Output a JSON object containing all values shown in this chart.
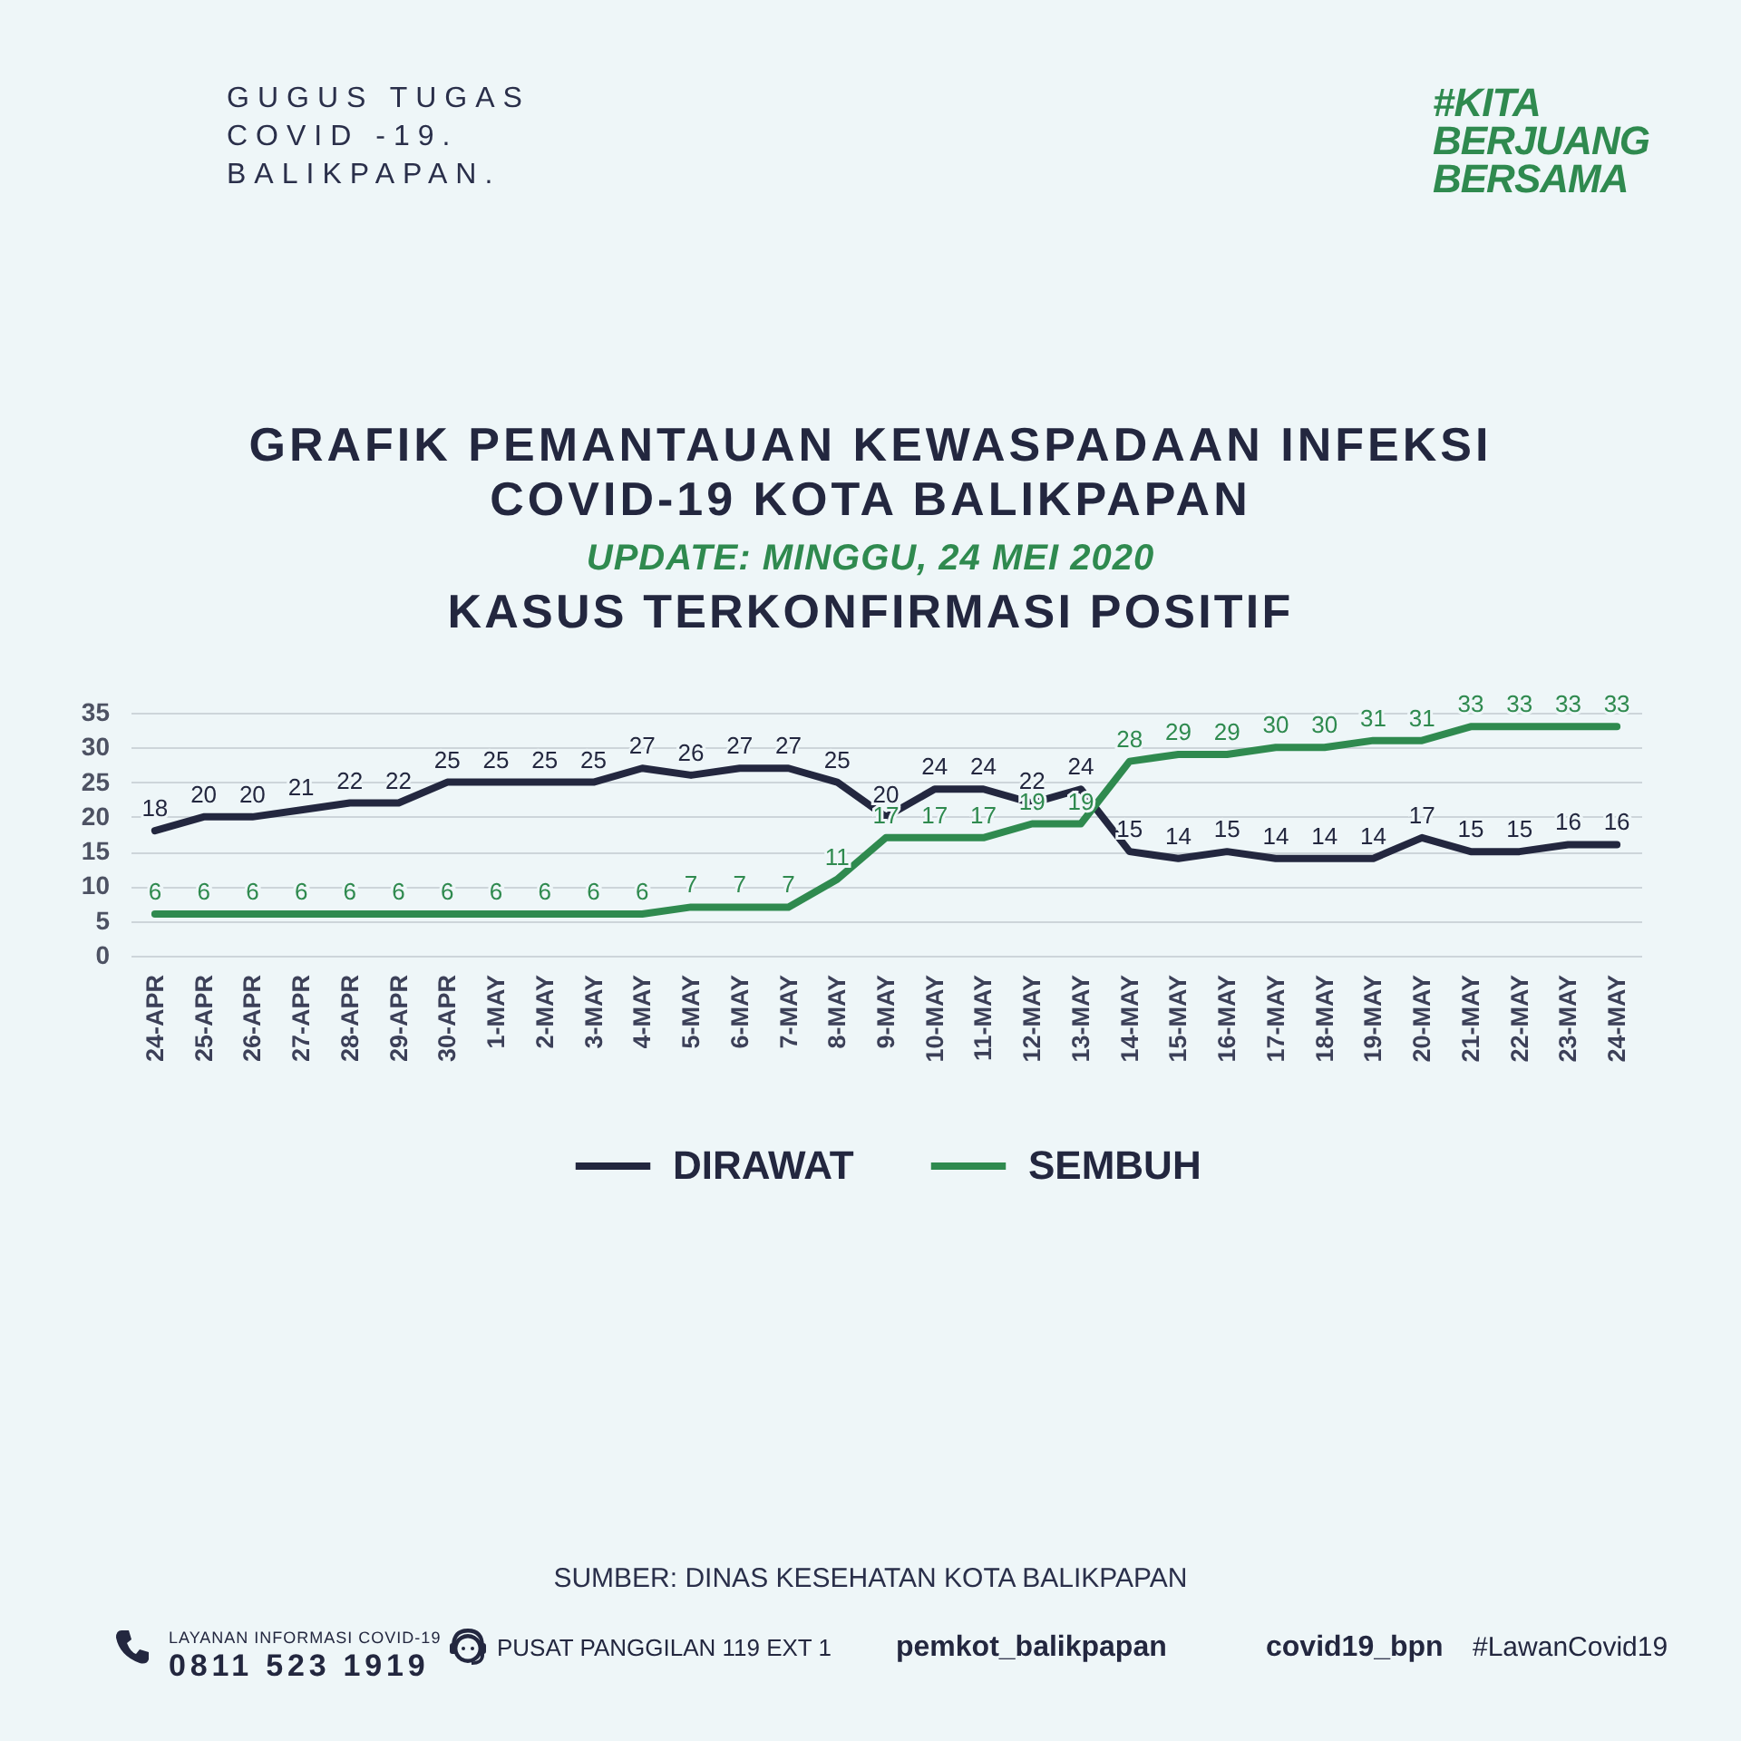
{
  "chart_data": {
    "type": "line",
    "title": "GRAFIK PEMANTAUAN KEWASPADAAN INFEKSI COVID-19 KOTA BALIKPAPAN",
    "subtitle": "KASUS TERKONFIRMASI POSITIF",
    "categories": [
      "24-APR",
      "25-APR",
      "26-APR",
      "27-APR",
      "28-APR",
      "29-APR",
      "30-APR",
      "1-MAY",
      "2-MAY",
      "3-MAY",
      "4-MAY",
      "5-MAY",
      "6-MAY",
      "7-MAY",
      "8-MAY",
      "9-MAY",
      "10-MAY",
      "11-MAY",
      "12-MAY",
      "13-MAY",
      "14-MAY",
      "15-MAY",
      "16-MAY",
      "17-MAY",
      "18-MAY",
      "19-MAY",
      "20-MAY",
      "21-MAY",
      "22-MAY",
      "23-MAY",
      "24-MAY"
    ],
    "series": [
      {
        "name": "DIRAWAT",
        "color": "#23273f",
        "values": [
          18,
          20,
          20,
          21,
          22,
          22,
          25,
          25,
          25,
          25,
          27,
          26,
          27,
          27,
          25,
          20,
          24,
          24,
          22,
          24,
          15,
          14,
          15,
          14,
          14,
          14,
          17,
          15,
          15,
          16,
          16
        ]
      },
      {
        "name": "SEMBUH",
        "color": "#2f8a4f",
        "values": [
          6,
          6,
          6,
          6,
          6,
          6,
          6,
          6,
          6,
          6,
          6,
          7,
          7,
          7,
          11,
          17,
          17,
          17,
          19,
          19,
          28,
          29,
          29,
          30,
          30,
          31,
          31,
          33,
          33,
          33,
          33
        ]
      }
    ],
    "ylim": [
      0,
      35
    ],
    "yticks": [
      0,
      5,
      10,
      15,
      20,
      25,
      30,
      35
    ],
    "grid": "y",
    "legend": "bottom",
    "data_labels": true,
    "annotations": [
      "GUGUS TUGAS\nCOVID -19.\nBALIKPAPAN.",
      "#KITA\nBERJUANG\nBERSAMA",
      "UPDATE: MINGGU, 24 MEI 2020",
      "SUMBER: DINAS KESEHATAN KOTA BALIKPAPAN",
      "LAYANAN INFORMASI COVID-19\n0811 523 1919",
      "PUSAT PANGGILAN 119 EXT 1",
      "pemkot_balikpapan",
      "covid19_bpn",
      "#LawanCovid19"
    ]
  }
}
